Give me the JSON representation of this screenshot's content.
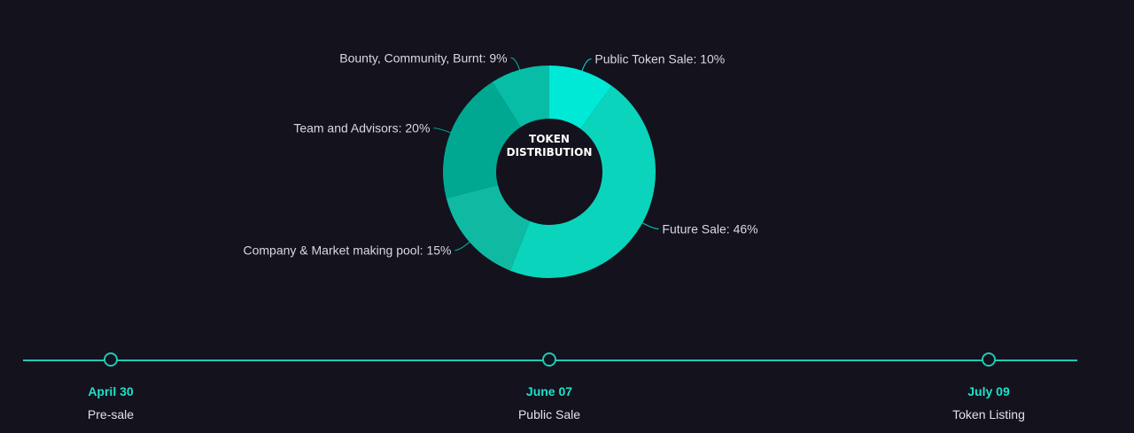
{
  "chart_data": {
    "type": "pie",
    "variant": "donut",
    "title": "TOKEN DISTRIBUTION",
    "title_lines": [
      "TOKEN",
      "DISTRIBUTION"
    ],
    "slices": [
      {
        "label": "Public Token Sale: 10%",
        "name": "Public Token Sale",
        "value": 10,
        "color": "#00e8d6"
      },
      {
        "label": "Future Sale: 46%",
        "name": "Future Sale",
        "value": 46,
        "color": "#0ad4bb"
      },
      {
        "label": "Company & Market making pool: 15%",
        "name": "Company & Market making pool",
        "value": 15,
        "color": "#10baa2"
      },
      {
        "label": "Team and Advisors: 20%",
        "name": "Team and Advisors",
        "value": 20,
        "color": "#00a891"
      },
      {
        "label": "Bounty, Community, Burnt: 9%",
        "name": "Bounty, Community, Burnt",
        "value": 9,
        "color": "#07bda6"
      }
    ]
  },
  "timeline": {
    "line_color": "#1fc9b4",
    "milestones": [
      {
        "date": "April 30",
        "label": "Pre-sale"
      },
      {
        "date": "June 07",
        "label": "Public Sale"
      },
      {
        "date": "July 09",
        "label": "Token Listing"
      }
    ]
  }
}
